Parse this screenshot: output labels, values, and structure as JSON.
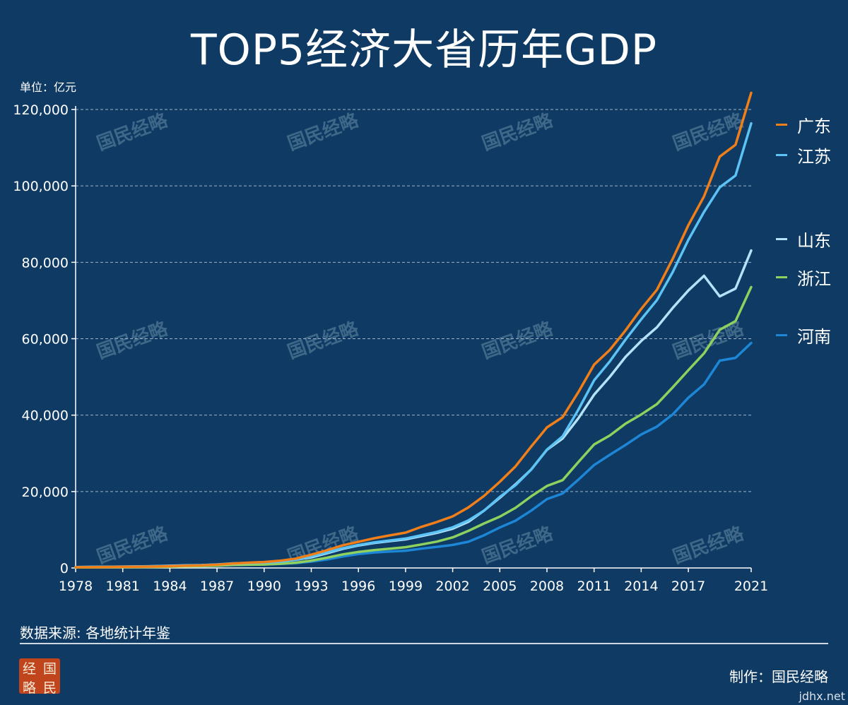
{
  "header": {
    "title": "TOP5经济大省历年GDP",
    "unit": "单位：亿元"
  },
  "footer": {
    "source": "数据来源: 各地统计年鉴",
    "credit": "制作：国民经略",
    "logo_chars": [
      "经",
      "国",
      "略",
      "民"
    ],
    "site": "jdhx.net"
  },
  "watermark": {
    "text": "国民经略",
    "color": "#3f6788"
  },
  "colors": {
    "background": "#0e3a63",
    "grid": "#9fb4c8",
    "axis": "#ffffff",
    "guangdong": "#f07f1a",
    "jiangsu": "#5bc3f5",
    "shandong": "#b3e2fb",
    "zhejiang": "#8fd15e",
    "henan": "#1d86d6"
  },
  "chart_data": {
    "type": "line",
    "title": "TOP5经济大省历年GDP",
    "ylabel": "单位：亿元",
    "xlabel": "",
    "ylim": [
      0,
      120000
    ],
    "xlim": [
      1978,
      2021
    ],
    "grid": true,
    "legend_position": "right",
    "x_ticks": [
      "1978",
      "1981",
      "1984",
      "1987",
      "1990",
      "1993",
      "1996",
      "1999",
      "2002",
      "2005",
      "2008",
      "2011",
      "2014",
      "2017",
      "2021"
    ],
    "y_ticks": [
      "0",
      "20,000",
      "40,000",
      "60,000",
      "80,000",
      "100,000",
      "120,000"
    ],
    "x": [
      1978,
      1979,
      1980,
      1981,
      1982,
      1983,
      1984,
      1985,
      1986,
      1987,
      1988,
      1989,
      1990,
      1991,
      1992,
      1993,
      1994,
      1995,
      1996,
      1997,
      1998,
      1999,
      2000,
      2001,
      2002,
      2003,
      2004,
      2005,
      2006,
      2007,
      2008,
      2009,
      2010,
      2011,
      2012,
      2013,
      2014,
      2015,
      2016,
      2017,
      2018,
      2019,
      2020,
      2021
    ],
    "series": [
      {
        "name": "广东",
        "color": "#f07f1a",
        "label_y": 116000,
        "values": [
          186,
          209,
          250,
          291,
          340,
          368,
          459,
          577,
          668,
          847,
          1155,
          1381,
          1559,
          1893,
          2448,
          3469,
          4619,
          5934,
          6834,
          7775,
          8531,
          9251,
          10741,
          12039,
          13502,
          15845,
          18865,
          22557,
          26588,
          31777,
          36797,
          39483,
          46013,
          53210,
          57068,
          62164,
          67810,
          72813,
          80855,
          89705,
          97278,
          107671,
          110761,
          124370
        ]
      },
      {
        "name": "江苏",
        "color": "#5bc3f5",
        "label_y": 108000,
        "values": [
          249,
          298,
          320,
          350,
          390,
          438,
          518,
          652,
          744,
          922,
          1209,
          1322,
          1417,
          1601,
          2136,
          2998,
          4057,
          5155,
          6004,
          6680,
          7200,
          7698,
          8554,
          9457,
          10632,
          12443,
          15004,
          18599,
          21645,
          25741,
          30982,
          34457,
          41425,
          49110,
          54058,
          59753,
          65088,
          70116,
          77388,
          85870,
          93208,
          99632,
          102719,
          116364
        ]
      },
      {
        "name": "山东",
        "color": "#b3e2fb",
        "label_y": 86000,
        "values": [
          225,
          251,
          292,
          346,
          395,
          459,
          581,
          681,
          742,
          893,
          1118,
          1293,
          1511,
          1810,
          2196,
          2771,
          3844,
          5003,
          5883,
          6537,
          7021,
          7493,
          8337,
          9195,
          10275,
          12078,
          15021,
          18366,
          21900,
          25776,
          30933,
          33896,
          39170,
          45362,
          50013,
          55230,
          59427,
          63002,
          68024,
          72634,
          76470,
          71067,
          73129,
          83096
        ]
      },
      {
        "name": "浙江",
        "color": "#8fd15e",
        "label_y": 76000,
        "values": [
          124,
          157,
          180,
          204,
          234,
          257,
          323,
          429,
          502,
          606,
          770,
          849,
          905,
          1089,
          1376,
          1926,
          2689,
          3558,
          4189,
          4686,
          5052,
          5444,
          6141,
          6898,
          8004,
          9705,
          11649,
          13418,
          15743,
          18754,
          21463,
          22990,
          27722,
          32319,
          34665,
          37757,
          40173,
          42886,
          47251,
          51768,
          56197,
          62352,
          64613,
          73516
        ]
      },
      {
        "name": "河南",
        "color": "#1d86d6",
        "label_y": 61000,
        "values": [
          163,
          190,
          229,
          249,
          263,
          328,
          370,
          451,
          502,
          610,
          749,
          851,
          935,
          1046,
          1280,
          1661,
          2217,
          2988,
          3635,
          4041,
          4308,
          4518,
          5053,
          5533,
          6035,
          6868,
          8554,
          10587,
          12363,
          15012,
          18019,
          19480,
          23092,
          26931,
          29599,
          32191,
          34938,
          37002,
          40160,
          44553,
          48056,
          54259,
          54997,
          58887
        ]
      }
    ]
  }
}
